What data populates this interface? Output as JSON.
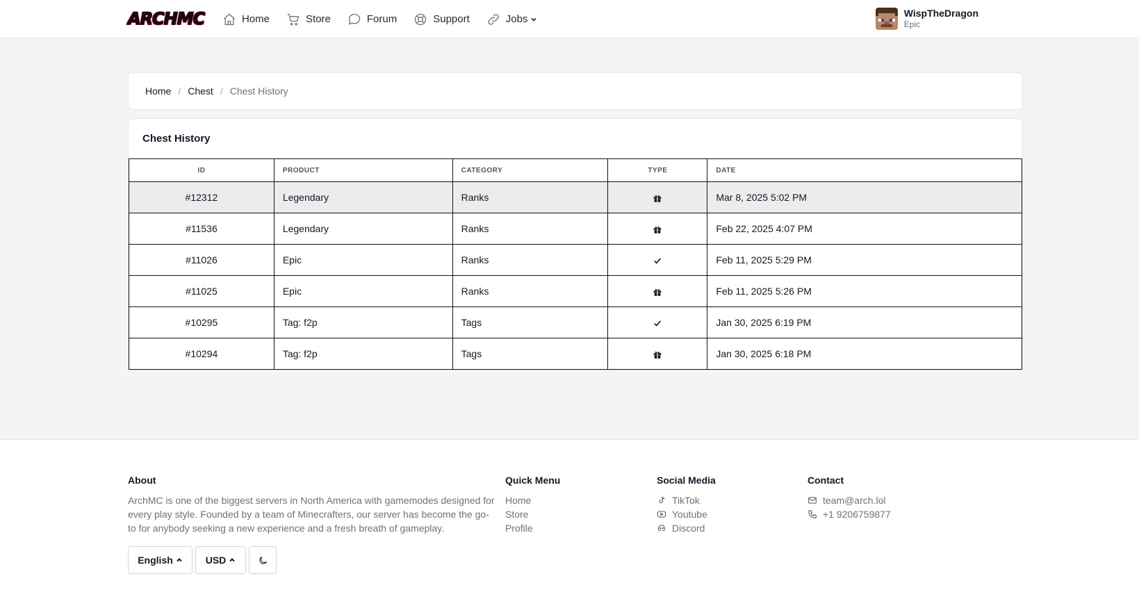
{
  "brand": {
    "logo_text": "ARCHMC"
  },
  "nav": {
    "items": [
      {
        "label": "Home",
        "icon": "home-icon"
      },
      {
        "label": "Store",
        "icon": "cart-icon"
      },
      {
        "label": "Forum",
        "icon": "chat-icon"
      },
      {
        "label": "Support",
        "icon": "lifebuoy-icon"
      },
      {
        "label": "Jobs",
        "icon": "link-icon"
      }
    ]
  },
  "user": {
    "name": "WispTheDragon",
    "rank": "Epic"
  },
  "breadcrumb": {
    "items": [
      "Home",
      "Chest",
      "Chest History"
    ],
    "separator": "/"
  },
  "history": {
    "title": "Chest History",
    "columns": [
      "ID",
      "PRODUCT",
      "CATEGORY",
      "TYPE",
      "DATE"
    ],
    "rows": [
      {
        "id": "#12312",
        "product": "Legendary",
        "category": "Ranks",
        "type": "gift-icon",
        "date": "Mar 8, 2025 5:02 PM"
      },
      {
        "id": "#11536",
        "product": "Legendary",
        "category": "Ranks",
        "type": "gift-icon",
        "date": "Feb 22, 2025 4:07 PM"
      },
      {
        "id": "#11026",
        "product": "Epic",
        "category": "Ranks",
        "type": "check-icon",
        "date": "Feb 11, 2025 5:29 PM"
      },
      {
        "id": "#11025",
        "product": "Epic",
        "category": "Ranks",
        "type": "gift-icon",
        "date": "Feb 11, 2025 5:26 PM"
      },
      {
        "id": "#10295",
        "product": "Tag: f2p",
        "category": "Tags",
        "type": "check-icon",
        "date": "Jan 30, 2025 6:19 PM"
      },
      {
        "id": "#10294",
        "product": "Tag: f2p",
        "category": "Tags",
        "type": "gift-icon",
        "date": "Jan 30, 2025 6:18 PM"
      }
    ]
  },
  "footer": {
    "about": {
      "title": "About",
      "text": "ArchMC is one of the biggest servers in North America with gamemodes designed for every play style. Founded by a team of Minecrafters, our server has become the go-to for anybody seeking a new experience and a fresh breath of gameplay."
    },
    "quick_menu": {
      "title": "Quick Menu",
      "links": [
        "Home",
        "Store",
        "Profile"
      ]
    },
    "social": {
      "title": "Social Media",
      "links": [
        {
          "label": "TikTok",
          "icon": "tiktok-icon"
        },
        {
          "label": "Youtube",
          "icon": "youtube-icon"
        },
        {
          "label": "Discord",
          "icon": "discord-icon"
        }
      ]
    },
    "contact": {
      "title": "Contact",
      "links": [
        {
          "label": "team@arch.lol",
          "icon": "mail-icon"
        },
        {
          "label": "+1 9206759877",
          "icon": "phone-icon"
        }
      ]
    },
    "language": "English",
    "currency": "USD",
    "theme_toggle_icon": "moon-icon"
  }
}
